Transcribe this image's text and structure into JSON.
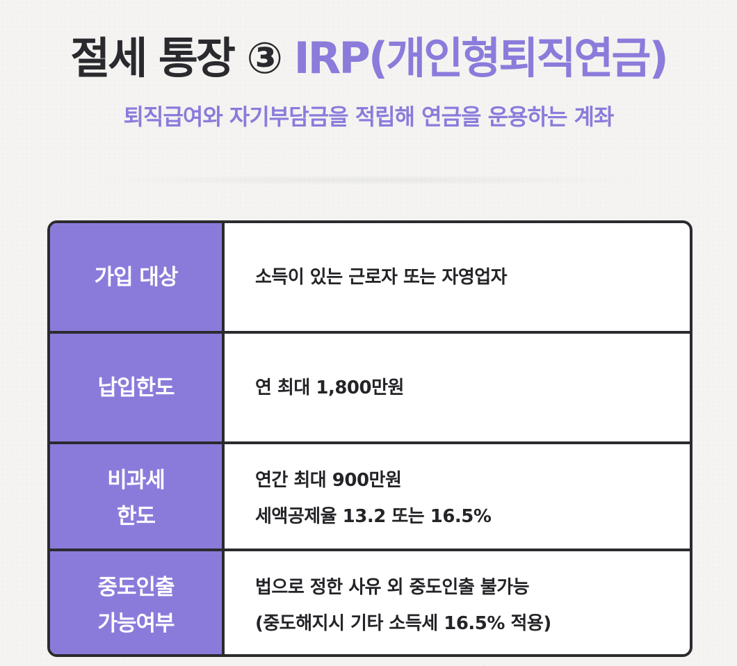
{
  "header": {
    "title_main": "절세 통장 ③ ",
    "title_accent": "IRP(개인형퇴직연금)",
    "subtitle": "퇴직급여와 자기부담금을 적립해 연금을 운용하는 계좌"
  },
  "table": {
    "rows": [
      {
        "label_lines": [
          "가입 대상"
        ],
        "value_lines": [
          "소득이 있는 근로자 또는 자영업자"
        ]
      },
      {
        "label_lines": [
          "납입한도"
        ],
        "value_lines": [
          "연 최대 1,800만원"
        ]
      },
      {
        "label_lines": [
          "비과세",
          "한도"
        ],
        "value_lines": [
          "연간 최대 900만원",
          "세액공제율 13.2 또는 16.5%"
        ]
      },
      {
        "label_lines": [
          "중도인출",
          "가능여부"
        ],
        "value_lines": [
          "법으로 정한 사유 외 중도인출 불가능",
          "(중도해지시 기타 소득세 16.5% 적용)"
        ]
      }
    ]
  },
  "colors": {
    "accent": "#8b7bdb",
    "label_bg": "#8a7bdb",
    "border": "#2b2b2f",
    "text_dark": "#2a2a2e"
  }
}
